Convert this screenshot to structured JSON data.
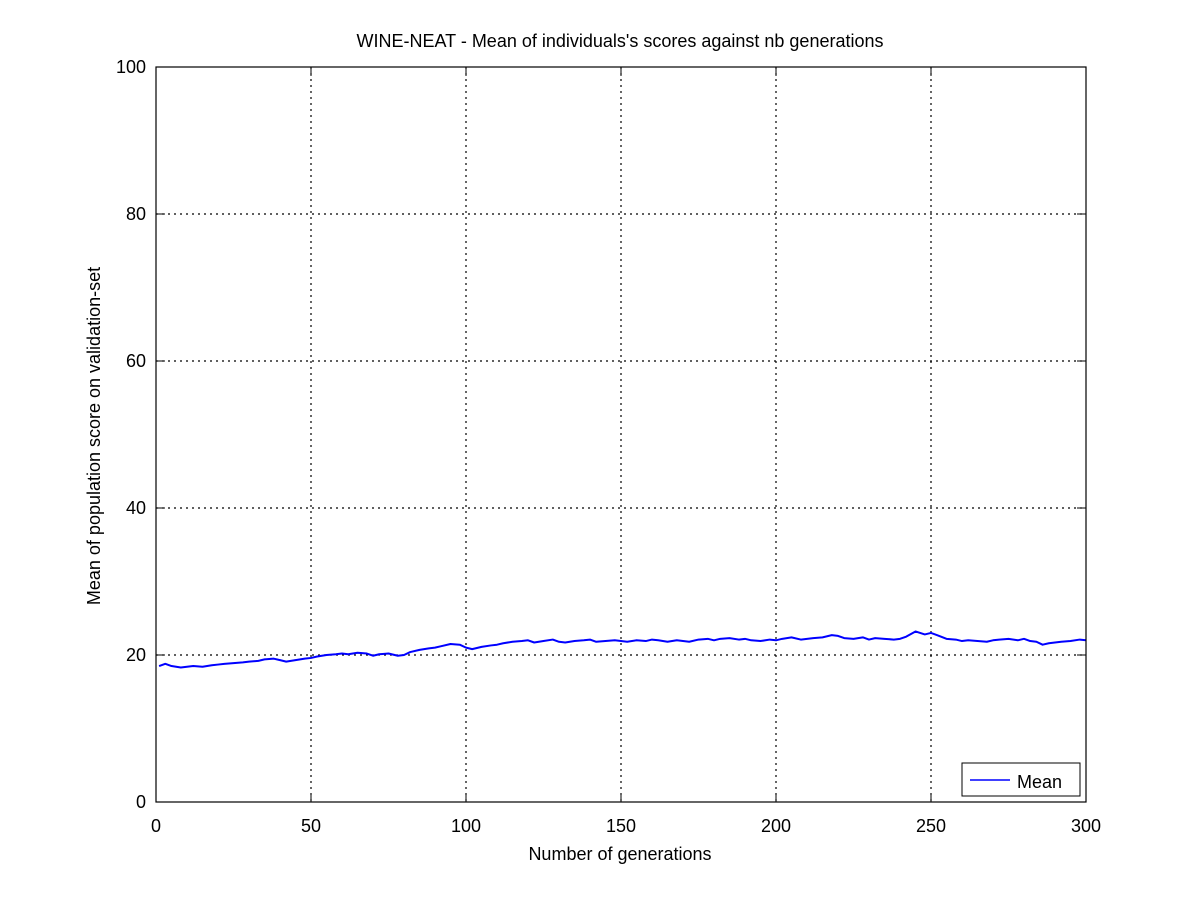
{
  "chart_data": {
    "type": "line",
    "title": "WINE-NEAT - Mean of individuals's scores against nb generations",
    "xlabel": "Number of generations",
    "ylabel": "Mean of population score on validation-set",
    "xlim": [
      0,
      300
    ],
    "ylim": [
      0,
      100
    ],
    "xticks": [
      0,
      50,
      100,
      150,
      200,
      250,
      300
    ],
    "yticks": [
      0,
      20,
      40,
      60,
      80,
      100
    ],
    "grid": true,
    "legend_position": "bottom-right",
    "line_color": "#0000ff",
    "series": [
      {
        "name": "Mean",
        "x": [
          1,
          3,
          5,
          8,
          10,
          12,
          15,
          18,
          20,
          22,
          25,
          28,
          30,
          33,
          35,
          38,
          40,
          42,
          45,
          48,
          50,
          52,
          55,
          58,
          60,
          62,
          65,
          68,
          70,
          72,
          75,
          78,
          80,
          82,
          85,
          88,
          90,
          92,
          95,
          98,
          100,
          102,
          105,
          108,
          110,
          112,
          115,
          118,
          120,
          122,
          125,
          128,
          130,
          132,
          135,
          138,
          140,
          142,
          145,
          148,
          150,
          152,
          155,
          158,
          160,
          162,
          165,
          168,
          170,
          172,
          175,
          178,
          180,
          182,
          185,
          188,
          190,
          192,
          195,
          198,
          200,
          202,
          205,
          208,
          210,
          212,
          215,
          218,
          220,
          222,
          225,
          228,
          230,
          232,
          235,
          238,
          240,
          242,
          245,
          248,
          250,
          252,
          255,
          258,
          260,
          262,
          265,
          268,
          270,
          272,
          275,
          278,
          280,
          282,
          284,
          286,
          288,
          290,
          292,
          295,
          298,
          300
        ],
        "y": [
          18.5,
          18.8,
          18.5,
          18.3,
          18.4,
          18.5,
          18.4,
          18.6,
          18.7,
          18.8,
          18.9,
          19.0,
          19.1,
          19.2,
          19.4,
          19.5,
          19.3,
          19.1,
          19.3,
          19.5,
          19.6,
          19.8,
          20.0,
          20.1,
          20.2,
          20.1,
          20.3,
          20.2,
          19.9,
          20.1,
          20.2,
          19.9,
          20.0,
          20.4,
          20.7,
          20.9,
          21.0,
          21.2,
          21.5,
          21.4,
          21.0,
          20.8,
          21.1,
          21.3,
          21.4,
          21.6,
          21.8,
          21.9,
          22.0,
          21.7,
          21.9,
          22.1,
          21.8,
          21.7,
          21.9,
          22.0,
          22.1,
          21.8,
          21.9,
          22.0,
          21.9,
          21.8,
          22.0,
          21.9,
          22.1,
          22.0,
          21.8,
          22.0,
          21.9,
          21.8,
          22.1,
          22.2,
          22.0,
          22.2,
          22.3,
          22.1,
          22.2,
          22.0,
          21.9,
          22.1,
          22.0,
          22.2,
          22.4,
          22.1,
          22.2,
          22.3,
          22.4,
          22.7,
          22.6,
          22.3,
          22.2,
          22.4,
          22.1,
          22.3,
          22.2,
          22.1,
          22.2,
          22.5,
          23.2,
          22.8,
          23.0,
          22.7,
          22.2,
          22.1,
          21.9,
          22.0,
          21.9,
          21.8,
          22.0,
          22.1,
          22.2,
          22.0,
          22.2,
          21.9,
          21.8,
          21.4,
          21.6,
          21.7,
          21.8,
          21.9,
          22.1,
          22.0
        ]
      }
    ]
  }
}
